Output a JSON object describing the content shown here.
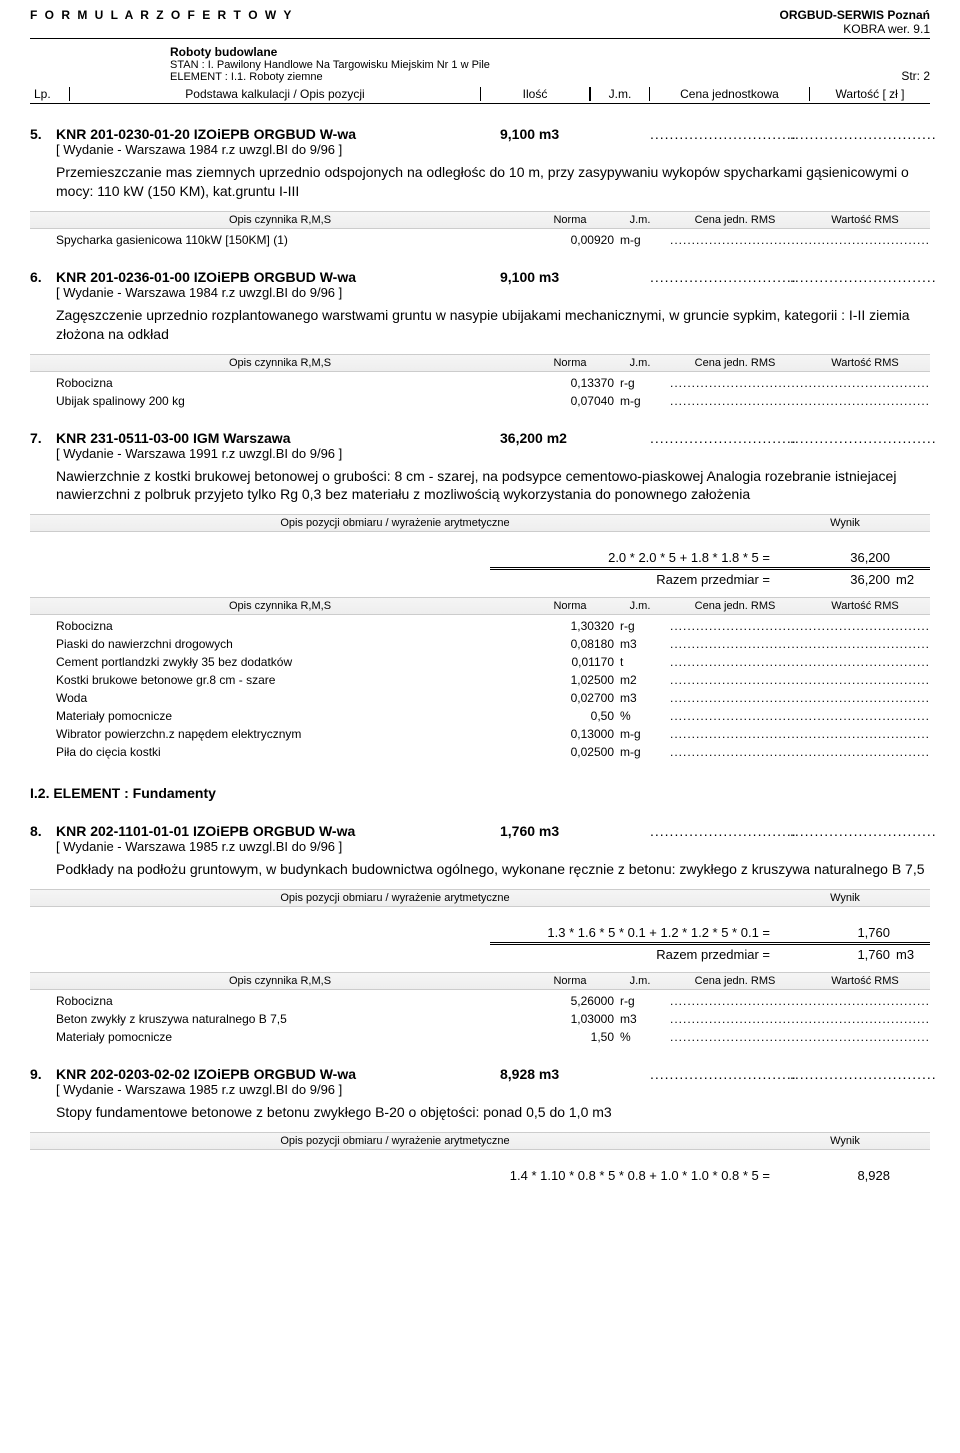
{
  "header": {
    "form_title": "F O R M U L A R Z   O F E R T O W Y",
    "company": "ORGBUD-SERWIS Poznań",
    "version": "KOBRA wer. 9.1",
    "roboty": "Roboty budowlane",
    "stan": "STAN : I. Pawilony Handlowe Na Targowisku Miejskim Nr 1 w Pile",
    "element": "ELEMENT : I.1. Roboty ziemne",
    "page": "Str: 2",
    "cols": {
      "lp": "Lp.",
      "opis": "Podstawa kalkulacji   /   Opis pozycji",
      "ilosc": "Ilość",
      "jm": "J.m.",
      "cena": "Cena jednostkowa",
      "wart": "Wartość [ zł ]"
    }
  },
  "rms_header": {
    "c1": "Opis czynnika R,M,S",
    "c2": "Norma",
    "c3": "J.m.",
    "c4": "Cena jedn. RMS",
    "c5": "Wartość RMS"
  },
  "obm_header": {
    "c1": "Opis pozycji obmiaru   /   wyrażenie arytmetyczne",
    "c2": "Wynik"
  },
  "dots": "..............................",
  "item5": {
    "num": "5.",
    "title": "KNR 201-0230-01-20 IZOiEPB ORGBUD W-wa",
    "qty": "9,100 m3",
    "sub": "[ Wydanie - Warszawa 1984 r.z uwzgl.BI do 9/96 ]",
    "desc": "Przemieszczanie mas ziemnych uprzednio odspojonych na odległośc do 10 m, przy zasypywaniu wykopów spycharkami gąsienicowymi o mocy: 110 kW (150 KM), kat.gruntu I-III",
    "rms": [
      {
        "name": "Spycharka gasienicowa 110kW [150KM] (1)",
        "val": "0,00920",
        "unit": "m-g"
      }
    ]
  },
  "item6": {
    "num": "6.",
    "title": "KNR 201-0236-01-00 IZOiEPB ORGBUD W-wa",
    "qty": "9,100 m3",
    "sub": "[ Wydanie - Warszawa 1984 r.z uwzgl.BI do 9/96 ]",
    "desc": "Zagęszczenie uprzednio rozplantowanego warstwami gruntu w nasypie ubijakami mechanicznymi, w gruncie sypkim, kategorii : I-II ziemia złożona na odkład",
    "rms": [
      {
        "name": "Robocizna",
        "val": "0,13370",
        "unit": "r-g"
      },
      {
        "name": "Ubijak spalinowy  200 kg",
        "val": "0,07040",
        "unit": "m-g"
      }
    ]
  },
  "item7": {
    "num": "7.",
    "title": "KNR 231-0511-03-00 IGM Warszawa",
    "qty": "36,200 m2",
    "sub": "[ Wydanie - Warszawa 1991 r.z uwzgl.BI do 9/96 ]",
    "desc": "Nawierzchnie z kostki brukowej betonowej o grubości: 8 cm - szarej, na podsypce cementowo-piaskowej Analogia rozebranie istniejacej nawierzchni z polbruk przyjeto tylko Rg 0,3 bez materiału z mozliwością wykorzystania do ponownego założenia",
    "calc_expr": "2.0 * 2.0 * 5 + 1.8 * 1.8 * 5 =",
    "calc_res": "36,200",
    "razem_lbl": "Razem przedmiar =",
    "razem_res": "36,200",
    "razem_unit": "m2",
    "rms": [
      {
        "name": "Robocizna",
        "val": "1,30320",
        "unit": "r-g"
      },
      {
        "name": "Piaski do nawierzchni drogowych",
        "val": "0,08180",
        "unit": "m3"
      },
      {
        "name": "Cement portlandzki zwykły 35 bez dodatków",
        "val": "0,01170",
        "unit": "t"
      },
      {
        "name": "Kostki brukowe betonowe gr.8 cm - szare",
        "val": "1,02500",
        "unit": "m2"
      },
      {
        "name": "Woda",
        "val": "0,02700",
        "unit": "m3"
      },
      {
        "name": "Materiały pomocnicze",
        "val": "0,50",
        "unit": "%"
      },
      {
        "name": "Wibrator powierzchn.z napędem elektrycznym",
        "val": "0,13000",
        "unit": "m-g"
      },
      {
        "name": "Piła do cięcia kostki",
        "val": "0,02500",
        "unit": "m-g"
      }
    ]
  },
  "section_i2": "I.2.   ELEMENT :   Fundamenty",
  "item8": {
    "num": "8.",
    "title": "KNR 202-1101-01-01 IZOiEPB ORGBUD W-wa",
    "qty": "1,760 m3",
    "sub": "[ Wydanie - Warszawa 1985 r.z uwzgl.BI do 9/96 ]",
    "desc": "Podkłady na podłożu gruntowym, w budynkach budownictwa ogólnego, wykonane ręcznie z betonu: zwykłego z kruszywa naturalnego B  7,5",
    "calc_expr": "1.3 * 1.6 * 5 * 0.1 + 1.2 * 1.2 * 5 * 0.1 =",
    "calc_res": "1,760",
    "razem_lbl": "Razem przedmiar =",
    "razem_res": "1,760",
    "razem_unit": "m3",
    "rms": [
      {
        "name": "Robocizna",
        "val": "5,26000",
        "unit": "r-g"
      },
      {
        "name": "Beton zwykły z kruszywa naturalnego B 7,5",
        "val": "1,03000",
        "unit": "m3"
      },
      {
        "name": "Materiały pomocnicze",
        "val": "1,50",
        "unit": "%"
      }
    ]
  },
  "item9": {
    "num": "9.",
    "title": "KNR 202-0203-02-02 IZOiEPB ORGBUD W-wa",
    "qty": "8,928 m3",
    "sub": "[ Wydanie - Warszawa 1985 r.z uwzgl.BI do 9/96 ]",
    "desc": "Stopy fundamentowe betonowe z betonu zwykłego B-20 o objętości: ponad 0,5 do 1,0 m3",
    "calc_expr": "1.4 * 1.10 * 0.8 * 5 * 0.8 + 1.0 * 1.0 * 0.8 * 5 =",
    "calc_res": "8,928"
  }
}
